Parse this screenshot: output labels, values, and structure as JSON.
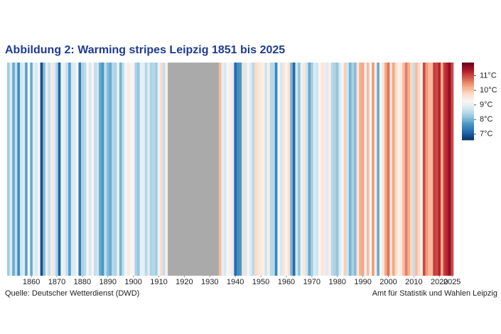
{
  "chart_data": {
    "type": "stripes",
    "title": "Abbildung 2: Warming stripes Leipzig 1851 bis 2025",
    "source": "Quelle: Deutscher Wetterdienst (DWD)",
    "credit": "Amt für Statistik und Wahlen Leipzig",
    "x": [
      1851,
      1852,
      1853,
      1854,
      1855,
      1856,
      1857,
      1858,
      1859,
      1860,
      1861,
      1862,
      1863,
      1864,
      1865,
      1866,
      1867,
      1868,
      1869,
      1870,
      1871,
      1872,
      1873,
      1874,
      1875,
      1876,
      1877,
      1878,
      1879,
      1880,
      1881,
      1882,
      1883,
      1884,
      1885,
      1886,
      1887,
      1888,
      1889,
      1890,
      1891,
      1892,
      1893,
      1894,
      1895,
      1896,
      1897,
      1898,
      1899,
      1900,
      1901,
      1902,
      1903,
      1904,
      1905,
      1906,
      1907,
      1908,
      1909,
      1910,
      1911,
      1912,
      1913,
      1914,
      1915,
      1916,
      1917,
      1918,
      1919,
      1920,
      1921,
      1922,
      1923,
      1924,
      1925,
      1926,
      1927,
      1928,
      1929,
      1930,
      1931,
      1932,
      1933,
      1934,
      1935,
      1936,
      1937,
      1938,
      1939,
      1940,
      1941,
      1942,
      1943,
      1944,
      1945,
      1946,
      1947,
      1948,
      1949,
      1950,
      1951,
      1952,
      1953,
      1954,
      1955,
      1956,
      1957,
      1958,
      1959,
      1960,
      1961,
      1962,
      1963,
      1964,
      1965,
      1966,
      1967,
      1968,
      1969,
      1970,
      1971,
      1972,
      1973,
      1974,
      1975,
      1976,
      1977,
      1978,
      1979,
      1980,
      1981,
      1982,
      1983,
      1984,
      1985,
      1986,
      1987,
      1988,
      1989,
      1990,
      1991,
      1992,
      1993,
      1994,
      1995,
      1996,
      1997,
      1998,
      1999,
      2000,
      2001,
      2002,
      2003,
      2004,
      2005,
      2006,
      2007,
      2008,
      2009,
      2010,
      2011,
      2012,
      2013,
      2014,
      2015,
      2016,
      2017,
      2018,
      2019,
      2020,
      2021,
      2022,
      2023,
      2024,
      2025
    ],
    "values": [
      8.3,
      8.9,
      7.9,
      8.6,
      7.6,
      8.7,
      8.9,
      7.8,
      9.2,
      7.9,
      9.0,
      8.8,
      9.3,
      6.9,
      8.1,
      9.0,
      8.6,
      9.5,
      8.9,
      8.4,
      7.1,
      9.1,
      9.0,
      8.6,
      7.8,
      8.8,
      8.9,
      9.2,
      7.4,
      8.4,
      8.5,
      9.2,
      8.8,
      9.3,
      8.6,
      8.7,
      7.9,
      7.7,
      8.6,
      8.1,
      7.9,
      8.5,
      8.4,
      9.1,
      8.0,
      8.6,
      9.2,
      9.5,
      9.3,
      9.3,
      8.4,
      8.2,
      9.0,
      9.0,
      8.5,
      8.9,
      8.4,
      8.5,
      8.3,
      9.1,
      9.8,
      8.6,
      9.4,
      null,
      null,
      null,
      null,
      null,
      null,
      null,
      null,
      null,
      null,
      null,
      null,
      null,
      null,
      null,
      null,
      null,
      null,
      null,
      null,
      10.1,
      9.0,
      8.8,
      9.3,
      9.4,
      9.0,
      7.2,
      7.6,
      7.7,
      9.7,
      8.8,
      9.2,
      8.9,
      8.5,
      9.8,
      9.6,
      9.5,
      9.4,
      8.7,
      9.4,
      8.5,
      8.5,
      7.5,
      9.2,
      8.8,
      9.6,
      9.3,
      9.7,
      8.0,
      7.2,
      8.8,
      8.2,
      9.1,
      9.6,
      8.7,
      7.9,
      8.3,
      8.9,
      8.7,
      9.2,
      9.6,
      9.5,
      8.9,
      9.4,
      8.5,
      8.4,
      8.2,
      8.9,
      9.2,
      9.9,
      8.7,
      8.0,
      8.4,
      8.1,
      9.6,
      10.2,
      10.3,
      9.0,
      10.1,
      9.2,
      10.4,
      9.4,
      7.9,
      9.3,
      9.6,
      10.3,
      10.7,
      9.6,
      10.3,
      9.8,
      9.4,
      9.5,
      10.1,
      10.6,
      10.2,
      9.8,
      8.6,
      10.1,
      9.8,
      9.4,
      11.0,
      10.4,
      10.1,
      10.1,
      11.1,
      11.0,
      11.3,
      10.2,
      11.1,
      11.3,
      11.6,
      11.0
    ],
    "xlim": [
      1850.5,
      2025.5
    ],
    "xticks": [
      1860,
      1870,
      1880,
      1890,
      1900,
      1910,
      1920,
      1930,
      1940,
      1950,
      1960,
      1970,
      1980,
      1990,
      2000,
      2010,
      2020,
      2025
    ],
    "colormap": [
      "#053061",
      "#2166ac",
      "#4393c3",
      "#92c5de",
      "#d1e5f0",
      "#f7f7f7",
      "#fddbc7",
      "#f4a582",
      "#d6604d",
      "#b2182b",
      "#67001f"
    ],
    "null_color": "#aaaaaa",
    "clim": [
      6.6,
      11.9
    ],
    "cticks": [
      {
        "value": 7,
        "label": "7°C"
      },
      {
        "value": 8,
        "label": "8°C"
      },
      {
        "value": 9,
        "label": "9°C"
      },
      {
        "value": 10,
        "label": "10°C"
      },
      {
        "value": 11,
        "label": "11°C"
      }
    ]
  }
}
